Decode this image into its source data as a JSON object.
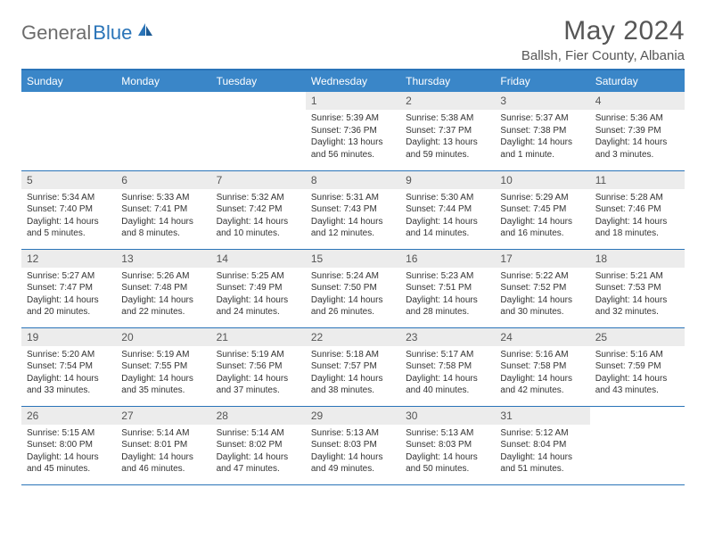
{
  "logo": {
    "part1": "General",
    "part2": "Blue"
  },
  "title": "May 2024",
  "location": "Ballsh, Fier County, Albania",
  "colors": {
    "header_bg": "#3a86c8",
    "border": "#2a74b8",
    "daynum_bg": "#ececec",
    "title_color": "#565656"
  },
  "day_names": [
    "Sunday",
    "Monday",
    "Tuesday",
    "Wednesday",
    "Thursday",
    "Friday",
    "Saturday"
  ],
  "weeks": [
    [
      null,
      null,
      null,
      {
        "n": "1",
        "sr": "Sunrise: 5:39 AM",
        "ss": "Sunset: 7:36 PM",
        "d1": "Daylight: 13 hours",
        "d2": "and 56 minutes."
      },
      {
        "n": "2",
        "sr": "Sunrise: 5:38 AM",
        "ss": "Sunset: 7:37 PM",
        "d1": "Daylight: 13 hours",
        "d2": "and 59 minutes."
      },
      {
        "n": "3",
        "sr": "Sunrise: 5:37 AM",
        "ss": "Sunset: 7:38 PM",
        "d1": "Daylight: 14 hours",
        "d2": "and 1 minute."
      },
      {
        "n": "4",
        "sr": "Sunrise: 5:36 AM",
        "ss": "Sunset: 7:39 PM",
        "d1": "Daylight: 14 hours",
        "d2": "and 3 minutes."
      }
    ],
    [
      {
        "n": "5",
        "sr": "Sunrise: 5:34 AM",
        "ss": "Sunset: 7:40 PM",
        "d1": "Daylight: 14 hours",
        "d2": "and 5 minutes."
      },
      {
        "n": "6",
        "sr": "Sunrise: 5:33 AM",
        "ss": "Sunset: 7:41 PM",
        "d1": "Daylight: 14 hours",
        "d2": "and 8 minutes."
      },
      {
        "n": "7",
        "sr": "Sunrise: 5:32 AM",
        "ss": "Sunset: 7:42 PM",
        "d1": "Daylight: 14 hours",
        "d2": "and 10 minutes."
      },
      {
        "n": "8",
        "sr": "Sunrise: 5:31 AM",
        "ss": "Sunset: 7:43 PM",
        "d1": "Daylight: 14 hours",
        "d2": "and 12 minutes."
      },
      {
        "n": "9",
        "sr": "Sunrise: 5:30 AM",
        "ss": "Sunset: 7:44 PM",
        "d1": "Daylight: 14 hours",
        "d2": "and 14 minutes."
      },
      {
        "n": "10",
        "sr": "Sunrise: 5:29 AM",
        "ss": "Sunset: 7:45 PM",
        "d1": "Daylight: 14 hours",
        "d2": "and 16 minutes."
      },
      {
        "n": "11",
        "sr": "Sunrise: 5:28 AM",
        "ss": "Sunset: 7:46 PM",
        "d1": "Daylight: 14 hours",
        "d2": "and 18 minutes."
      }
    ],
    [
      {
        "n": "12",
        "sr": "Sunrise: 5:27 AM",
        "ss": "Sunset: 7:47 PM",
        "d1": "Daylight: 14 hours",
        "d2": "and 20 minutes."
      },
      {
        "n": "13",
        "sr": "Sunrise: 5:26 AM",
        "ss": "Sunset: 7:48 PM",
        "d1": "Daylight: 14 hours",
        "d2": "and 22 minutes."
      },
      {
        "n": "14",
        "sr": "Sunrise: 5:25 AM",
        "ss": "Sunset: 7:49 PM",
        "d1": "Daylight: 14 hours",
        "d2": "and 24 minutes."
      },
      {
        "n": "15",
        "sr": "Sunrise: 5:24 AM",
        "ss": "Sunset: 7:50 PM",
        "d1": "Daylight: 14 hours",
        "d2": "and 26 minutes."
      },
      {
        "n": "16",
        "sr": "Sunrise: 5:23 AM",
        "ss": "Sunset: 7:51 PM",
        "d1": "Daylight: 14 hours",
        "d2": "and 28 minutes."
      },
      {
        "n": "17",
        "sr": "Sunrise: 5:22 AM",
        "ss": "Sunset: 7:52 PM",
        "d1": "Daylight: 14 hours",
        "d2": "and 30 minutes."
      },
      {
        "n": "18",
        "sr": "Sunrise: 5:21 AM",
        "ss": "Sunset: 7:53 PM",
        "d1": "Daylight: 14 hours",
        "d2": "and 32 minutes."
      }
    ],
    [
      {
        "n": "19",
        "sr": "Sunrise: 5:20 AM",
        "ss": "Sunset: 7:54 PM",
        "d1": "Daylight: 14 hours",
        "d2": "and 33 minutes."
      },
      {
        "n": "20",
        "sr": "Sunrise: 5:19 AM",
        "ss": "Sunset: 7:55 PM",
        "d1": "Daylight: 14 hours",
        "d2": "and 35 minutes."
      },
      {
        "n": "21",
        "sr": "Sunrise: 5:19 AM",
        "ss": "Sunset: 7:56 PM",
        "d1": "Daylight: 14 hours",
        "d2": "and 37 minutes."
      },
      {
        "n": "22",
        "sr": "Sunrise: 5:18 AM",
        "ss": "Sunset: 7:57 PM",
        "d1": "Daylight: 14 hours",
        "d2": "and 38 minutes."
      },
      {
        "n": "23",
        "sr": "Sunrise: 5:17 AM",
        "ss": "Sunset: 7:58 PM",
        "d1": "Daylight: 14 hours",
        "d2": "and 40 minutes."
      },
      {
        "n": "24",
        "sr": "Sunrise: 5:16 AM",
        "ss": "Sunset: 7:58 PM",
        "d1": "Daylight: 14 hours",
        "d2": "and 42 minutes."
      },
      {
        "n": "25",
        "sr": "Sunrise: 5:16 AM",
        "ss": "Sunset: 7:59 PM",
        "d1": "Daylight: 14 hours",
        "d2": "and 43 minutes."
      }
    ],
    [
      {
        "n": "26",
        "sr": "Sunrise: 5:15 AM",
        "ss": "Sunset: 8:00 PM",
        "d1": "Daylight: 14 hours",
        "d2": "and 45 minutes."
      },
      {
        "n": "27",
        "sr": "Sunrise: 5:14 AM",
        "ss": "Sunset: 8:01 PM",
        "d1": "Daylight: 14 hours",
        "d2": "and 46 minutes."
      },
      {
        "n": "28",
        "sr": "Sunrise: 5:14 AM",
        "ss": "Sunset: 8:02 PM",
        "d1": "Daylight: 14 hours",
        "d2": "and 47 minutes."
      },
      {
        "n": "29",
        "sr": "Sunrise: 5:13 AM",
        "ss": "Sunset: 8:03 PM",
        "d1": "Daylight: 14 hours",
        "d2": "and 49 minutes."
      },
      {
        "n": "30",
        "sr": "Sunrise: 5:13 AM",
        "ss": "Sunset: 8:03 PM",
        "d1": "Daylight: 14 hours",
        "d2": "and 50 minutes."
      },
      {
        "n": "31",
        "sr": "Sunrise: 5:12 AM",
        "ss": "Sunset: 8:04 PM",
        "d1": "Daylight: 14 hours",
        "d2": "and 51 minutes."
      },
      null
    ]
  ]
}
